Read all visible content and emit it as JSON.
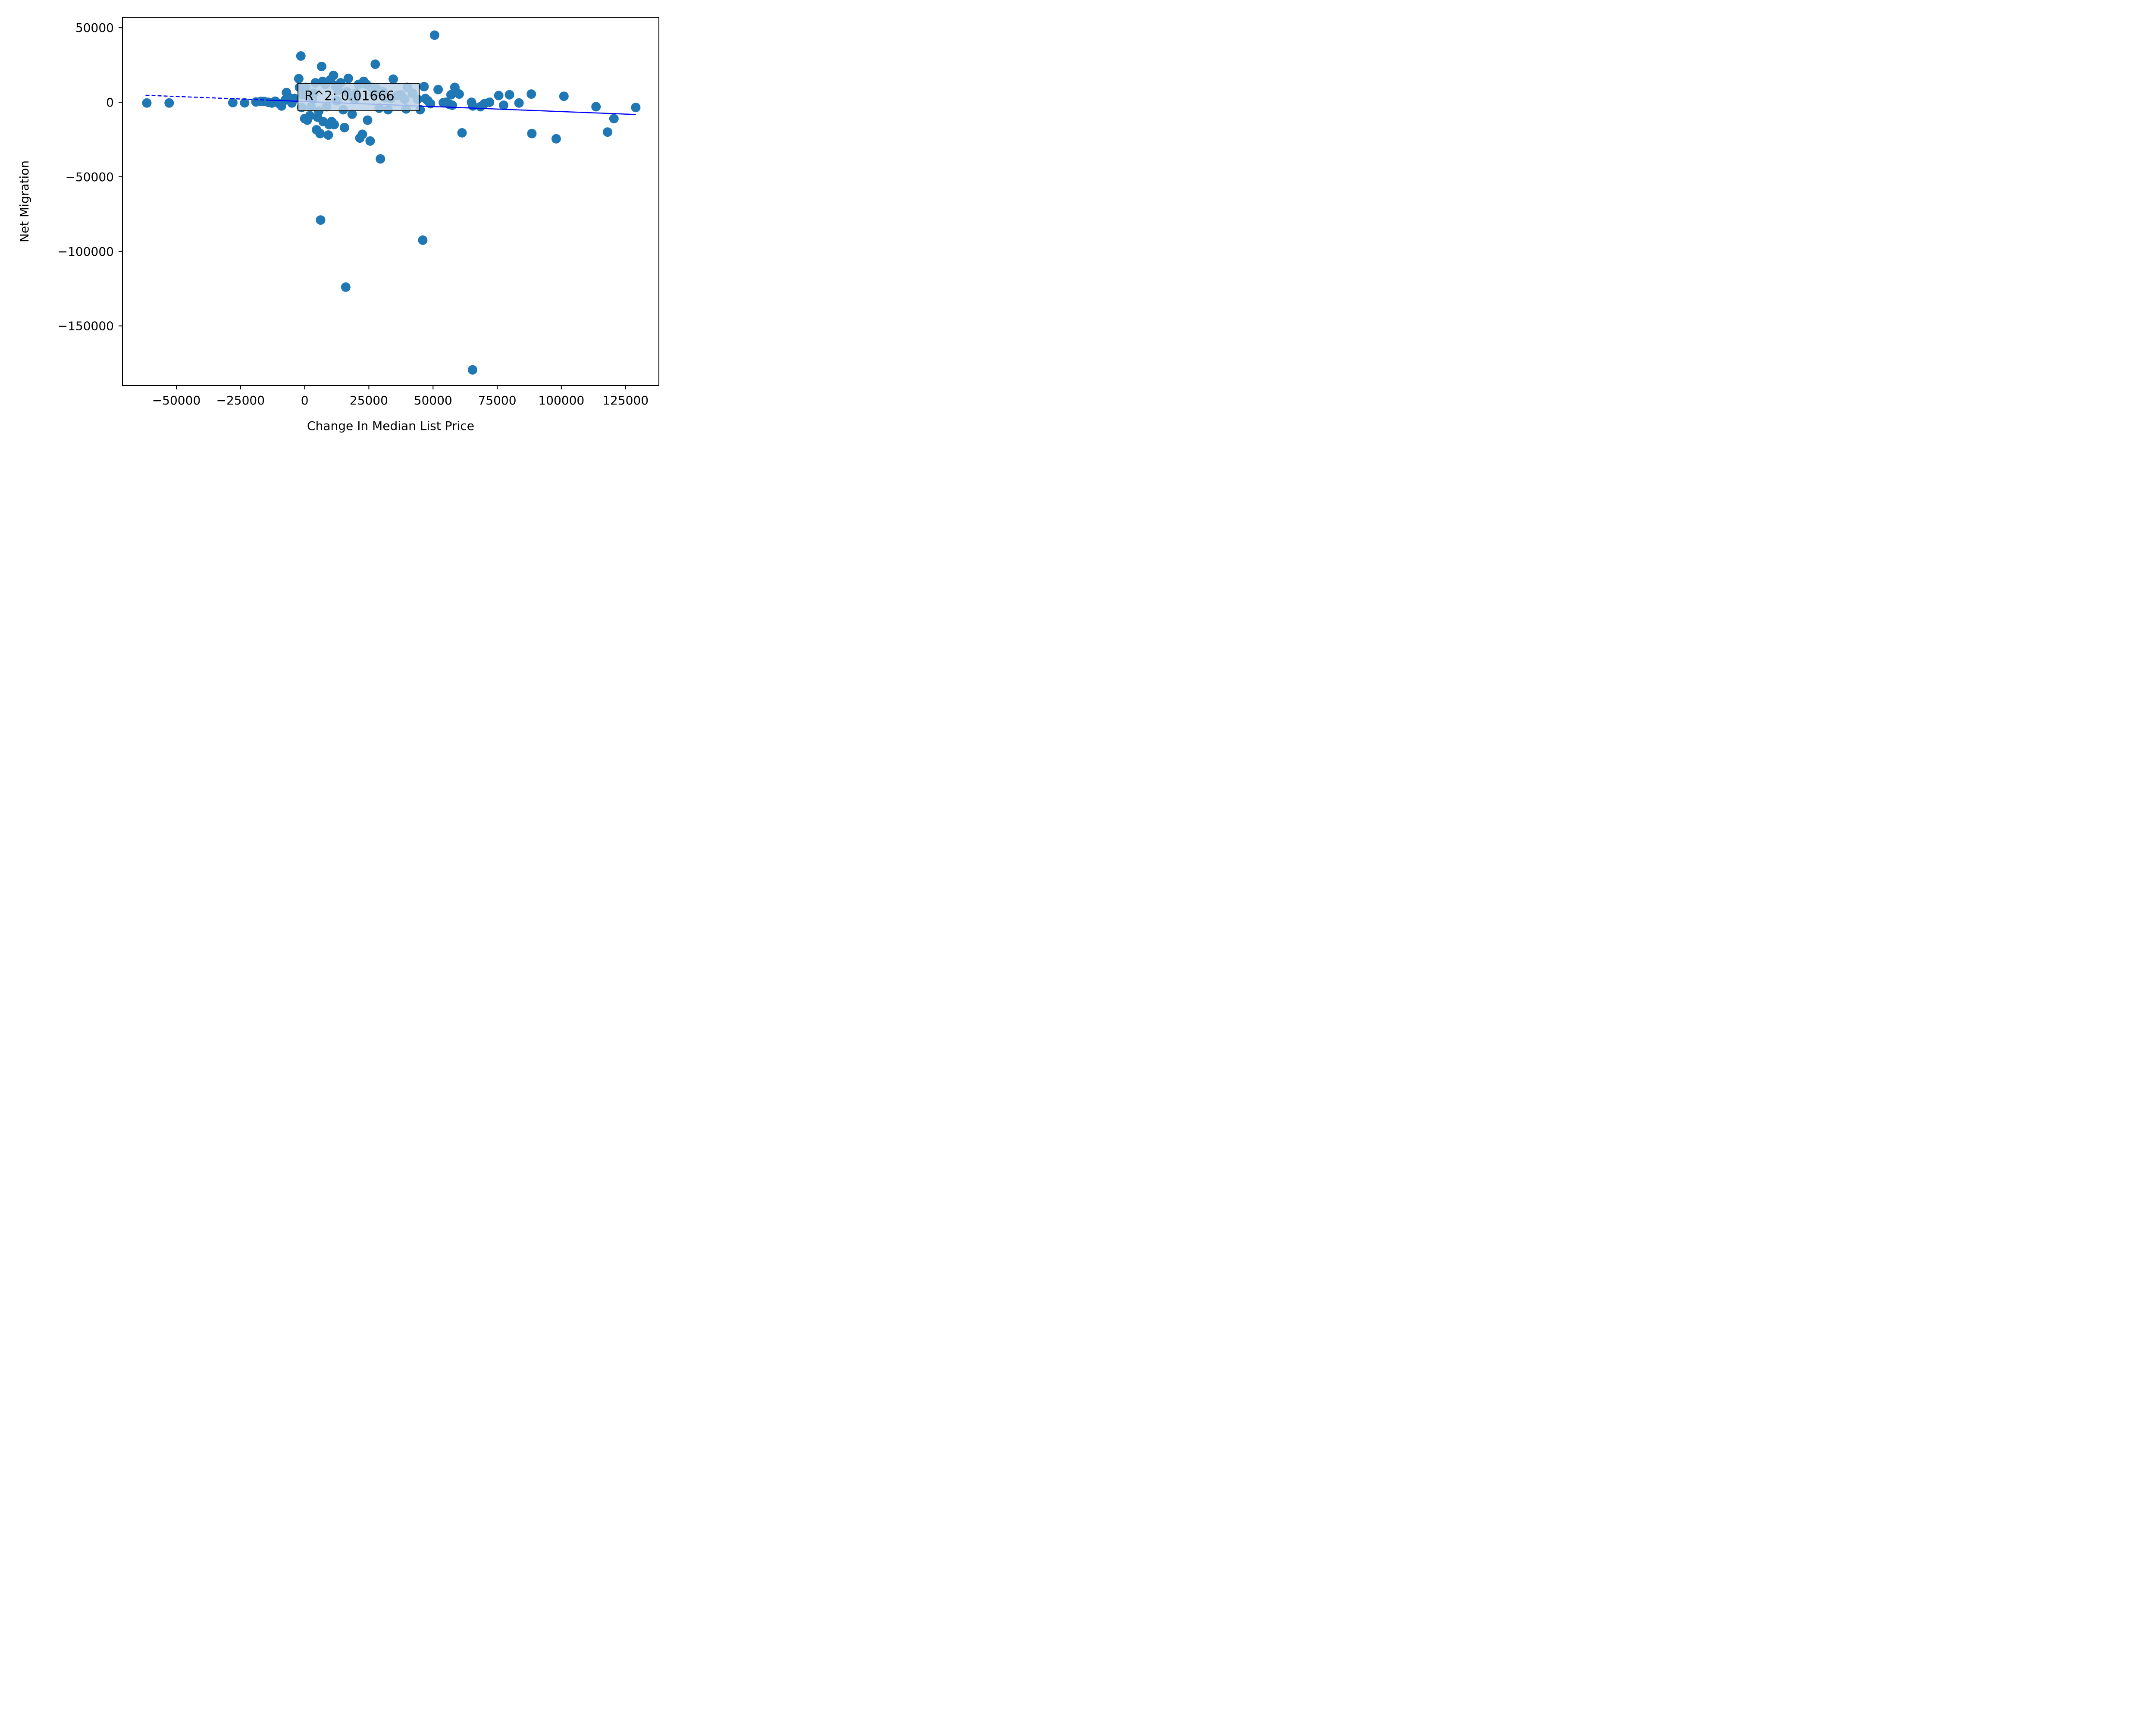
{
  "chart_data": {
    "type": "scatter",
    "xlabel": "Change In Median List Price",
    "ylabel": "Net Migration",
    "xlim": [
      -71000,
      138000
    ],
    "ylim": [
      -190000,
      57000
    ],
    "x_ticks": [
      -50000,
      -25000,
      0,
      25000,
      50000,
      75000,
      100000,
      125000
    ],
    "x_tick_labels": [
      "−50000",
      "−25000",
      "0",
      "25000",
      "50000",
      "75000",
      "100000",
      "125000"
    ],
    "y_ticks": [
      50000,
      0,
      -50000,
      -100000,
      -150000
    ],
    "y_tick_labels": [
      "50000",
      "0",
      "−50000",
      "−100000",
      "−150000"
    ],
    "grid": false,
    "point_color": "#1f77b4",
    "trendline": {
      "color": "#0000ff",
      "slope": -0.0676,
      "intercept": 491,
      "x_range": [
        -62000,
        129000
      ],
      "solid_from": -15000,
      "r_squared_label": "R^2: 0.01666"
    },
    "points": [
      [
        -61500,
        -500
      ],
      [
        -52800,
        -500
      ],
      [
        -28000,
        -300
      ],
      [
        -23400,
        -400
      ],
      [
        -19000,
        200
      ],
      [
        -17000,
        600
      ],
      [
        -15800,
        500
      ],
      [
        -14200,
        0
      ],
      [
        -12800,
        -500
      ],
      [
        -11500,
        700
      ],
      [
        -10000,
        -800
      ],
      [
        -9000,
        -2500
      ],
      [
        -7600,
        1500
      ],
      [
        -7100,
        6500
      ],
      [
        -6000,
        3000
      ],
      [
        -5000,
        -500
      ],
      [
        -4000,
        2500
      ],
      [
        -2300,
        15800
      ],
      [
        -2000,
        10000
      ],
      [
        -1500,
        31000
      ],
      [
        -1200,
        -3500
      ],
      [
        -800,
        5000
      ],
      [
        0,
        -11000
      ],
      [
        400,
        10000
      ],
      [
        1000,
        -12000
      ],
      [
        1500,
        3500
      ],
      [
        2000,
        -9000
      ],
      [
        2500,
        -3000
      ],
      [
        3000,
        2000
      ],
      [
        3500,
        6000
      ],
      [
        4200,
        13000
      ],
      [
        4600,
        -18500
      ],
      [
        5000,
        -10000
      ],
      [
        5500,
        -6000
      ],
      [
        6000,
        -21000
      ],
      [
        6200,
        -79000
      ],
      [
        6600,
        24000
      ],
      [
        7000,
        14000
      ],
      [
        7200,
        -13000
      ],
      [
        8000,
        12000
      ],
      [
        8500,
        -3000
      ],
      [
        9200,
        -22000
      ],
      [
        9500,
        -15000
      ],
      [
        10000,
        15000
      ],
      [
        10500,
        -13000
      ],
      [
        11200,
        18000
      ],
      [
        11500,
        -15000
      ],
      [
        12000,
        11000
      ],
      [
        12500,
        1000
      ],
      [
        13000,
        8000
      ],
      [
        14000,
        13000
      ],
      [
        15000,
        -5000
      ],
      [
        15500,
        -17000
      ],
      [
        16000,
        -124000
      ],
      [
        16500,
        7000
      ],
      [
        17000,
        16000
      ],
      [
        18000,
        4000
      ],
      [
        18500,
        -8000
      ],
      [
        19500,
        2000
      ],
      [
        20000,
        6000
      ],
      [
        21000,
        12000
      ],
      [
        21500,
        -24000
      ],
      [
        22500,
        -21500
      ],
      [
        23000,
        14000
      ],
      [
        24000,
        12000
      ],
      [
        24500,
        -12000
      ],
      [
        25500,
        -26000
      ],
      [
        26000,
        10000
      ],
      [
        27000,
        5000
      ],
      [
        27500,
        25500
      ],
      [
        28000,
        9000
      ],
      [
        29000,
        -4000
      ],
      [
        29500,
        -38000
      ],
      [
        30500,
        7000
      ],
      [
        31500,
        3000
      ],
      [
        32500,
        -5000
      ],
      [
        33500,
        2500
      ],
      [
        34500,
        15500
      ],
      [
        36000,
        4500
      ],
      [
        37500,
        5000
      ],
      [
        39000,
        2000
      ],
      [
        39500,
        -4500
      ],
      [
        40000,
        10000
      ],
      [
        42000,
        6000
      ],
      [
        44000,
        2000
      ],
      [
        45000,
        -5000
      ],
      [
        46000,
        -92500
      ],
      [
        46500,
        10500
      ],
      [
        47000,
        2500
      ],
      [
        48000,
        1000
      ],
      [
        49000,
        -1000
      ],
      [
        50600,
        45000
      ],
      [
        52000,
        8500
      ],
      [
        54000,
        -300
      ],
      [
        55000,
        0
      ],
      [
        56500,
        -1500
      ],
      [
        57000,
        5000
      ],
      [
        57500,
        -2000
      ],
      [
        58500,
        10000
      ],
      [
        59000,
        7000
      ],
      [
        60200,
        5500
      ],
      [
        61300,
        -20500
      ],
      [
        65000,
        0
      ],
      [
        65500,
        -2500
      ],
      [
        65400,
        -179500
      ],
      [
        68500,
        -3000
      ],
      [
        70000,
        -1000
      ],
      [
        72000,
        0
      ],
      [
        75600,
        4500
      ],
      [
        77500,
        -2000
      ],
      [
        79800,
        5000
      ],
      [
        83500,
        -500
      ],
      [
        88300,
        5500
      ],
      [
        88500,
        -21000
      ],
      [
        98000,
        -24500
      ],
      [
        101000,
        4000
      ],
      [
        113500,
        -3000
      ],
      [
        118000,
        -20000
      ],
      [
        120500,
        -11000
      ],
      [
        129000,
        -3500
      ]
    ]
  }
}
